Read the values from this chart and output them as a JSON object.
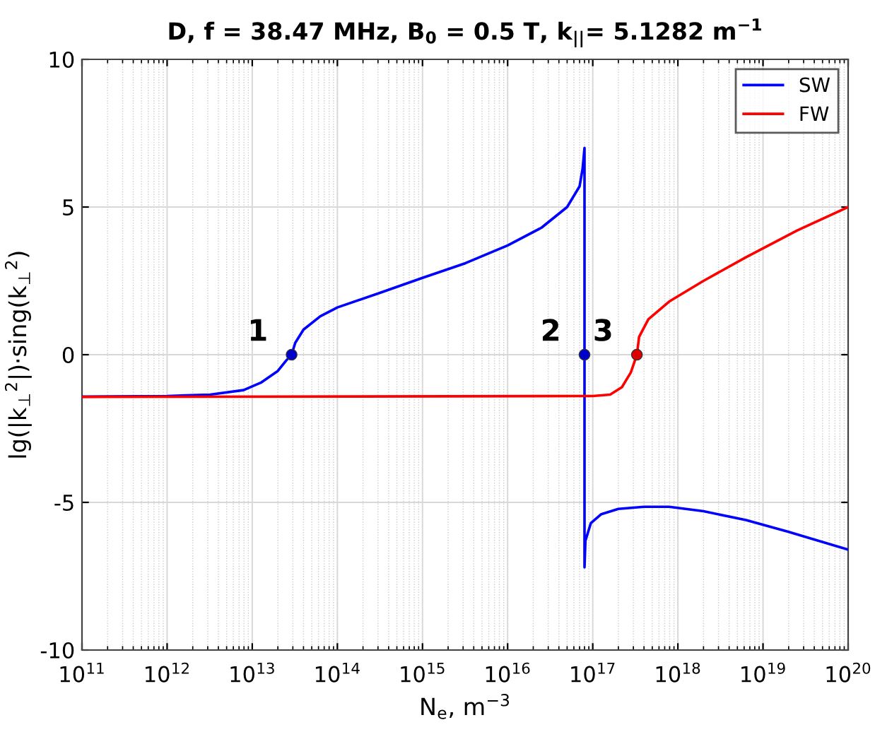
{
  "chart_data": {
    "type": "line",
    "title": "D, f = 38.47 MHz, B$_{0}$ = 0.5 T, k$_{||}$= 5.1282 m$^{−1}$",
    "xlabel": "N$_{e}$, m$^{−3}$",
    "ylabel": "lg(|k$_{⊥}$$^{2}$|)·sing(k$_{⊥}$$^{2}$)",
    "log": "x",
    "grid": true,
    "legend": "top right",
    "marker": "none",
    "line_style": "solid",
    "xlim": [
      100000000000.0,
      1e+20
    ],
    "ylim": [
      -10,
      10
    ],
    "xticks": [
      {
        "value": 100000000000.0,
        "label": "10$^{11}$"
      },
      {
        "value": 1000000000000.0,
        "label": "10$^{12}$"
      },
      {
        "value": 10000000000000.0,
        "label": "10$^{13}$"
      },
      {
        "value": 100000000000000.0,
        "label": "10$^{14}$"
      },
      {
        "value": 1000000000000000.0,
        "label": "10$^{15}$"
      },
      {
        "value": 1e+16,
        "label": "10$^{16}$"
      },
      {
        "value": 1e+17,
        "label": "10$^{17}$"
      },
      {
        "value": 1e+18,
        "label": "10$^{18}$"
      },
      {
        "value": 1e+19,
        "label": "10$^{19}$"
      },
      {
        "value": 1e+20,
        "label": "10$^{20}$"
      }
    ],
    "yticks": [
      -10,
      -5,
      0,
      5,
      10
    ],
    "series": [
      {
        "name": "SW",
        "color": "#0000ff",
        "x": [
          100000000000.0,
          1000000000000.0,
          3200000000000.0,
          7900000000000.0,
          12600000000000.0,
          20000000000000.0,
          25000000000000.0,
          29000000000000.0,
          32000000000000.0,
          40000000000000.0,
          63000000000000.0,
          100000000000000.0,
          320000000000000.0,
          1000000000000000.0,
          3200000000000000.0,
          1e+16,
          2.5e+16,
          5e+16,
          7e+16,
          7.6e+16,
          8e+16,
          8e+16,
          8.2e+16,
          9.5e+16,
          1.26e+17,
          2e+17,
          4e+17,
          7.9e+17,
          2e+18,
          6.3e+18,
          2e+19,
          1e+20
        ],
        "values": [
          -1.42,
          -1.4,
          -1.35,
          -1.2,
          -0.95,
          -0.55,
          -0.2,
          0,
          0.4,
          0.85,
          1.3,
          1.6,
          2.1,
          2.6,
          3.1,
          3.7,
          4.3,
          5.0,
          5.7,
          6.3,
          7.0,
          -7.2,
          -6.3,
          -5.7,
          -5.4,
          -5.22,
          -5.15,
          -5.15,
          -5.3,
          -5.6,
          -6.0,
          -6.6
        ]
      },
      {
        "name": "FW",
        "color": "#ff0000",
        "x": [
          100000000000.0,
          1e+17,
          1.6e+17,
          2.2e+17,
          2.8e+17,
          3.3e+17,
          3.5e+17,
          4.5e+17,
          7.9e+17,
          2e+18,
          6.3e+18,
          2.5e+19,
          1e+20
        ],
        "values": [
          -1.43,
          -1.4,
          -1.35,
          -1.1,
          -0.6,
          0,
          0.6,
          1.2,
          1.8,
          2.5,
          3.3,
          4.2,
          5.0
        ]
      },
      {
        "type": "scatter",
        "marker": "circle",
        "x": [
          29000000000000.0,
          8e+16,
          3.3e+17
        ],
        "values": [
          0,
          0,
          0
        ],
        "colors": [
          "#0000cc",
          "#0000cc",
          "#dd0000"
        ]
      }
    ],
    "annotations": [
      {
        "text": "1",
        "x": 29000000000000.0,
        "y": 0
      },
      {
        "text": "2",
        "x": 8e+16,
        "y": 0
      },
      {
        "text": "3",
        "x": 3.3e+17,
        "y": 0
      }
    ]
  }
}
